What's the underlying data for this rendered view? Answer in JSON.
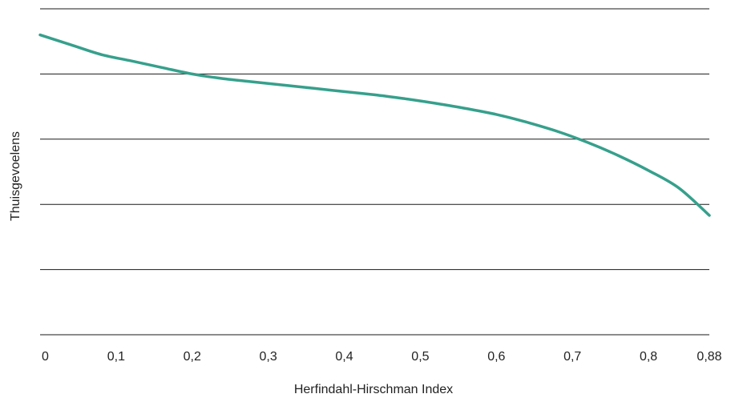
{
  "chart_data": {
    "type": "line",
    "xlabel": "Herfindahl-Hirschman Index",
    "ylabel": "Thuisgevoelens",
    "x_ticks": [
      "0",
      "0,1",
      "0,2",
      "0,3",
      "0,4",
      "0,5",
      "0,6",
      "0,7",
      "0,8",
      "0,88"
    ],
    "x_tick_values": [
      0,
      0.1,
      0.2,
      0.3,
      0.4,
      0.5,
      0.6,
      0.7,
      0.8,
      0.88
    ],
    "xlim": [
      0,
      0.88
    ],
    "ylim": [
      0,
      5
    ],
    "y_gridlines": [
      0,
      1,
      2,
      3,
      4,
      5
    ],
    "grid": true,
    "series": [
      {
        "color": "#36a08c",
        "x": [
          0,
          0.04,
          0.08,
          0.12,
          0.16,
          0.2,
          0.24,
          0.28,
          0.32,
          0.36,
          0.4,
          0.44,
          0.48,
          0.52,
          0.56,
          0.6,
          0.64,
          0.68,
          0.72,
          0.76,
          0.8,
          0.84,
          0.88
        ],
        "y": [
          4.6,
          4.45,
          4.3,
          4.2,
          4.1,
          4.0,
          3.93,
          3.88,
          3.83,
          3.78,
          3.73,
          3.68,
          3.62,
          3.55,
          3.47,
          3.38,
          3.26,
          3.12,
          2.95,
          2.75,
          2.52,
          2.25,
          1.83
        ]
      }
    ]
  }
}
